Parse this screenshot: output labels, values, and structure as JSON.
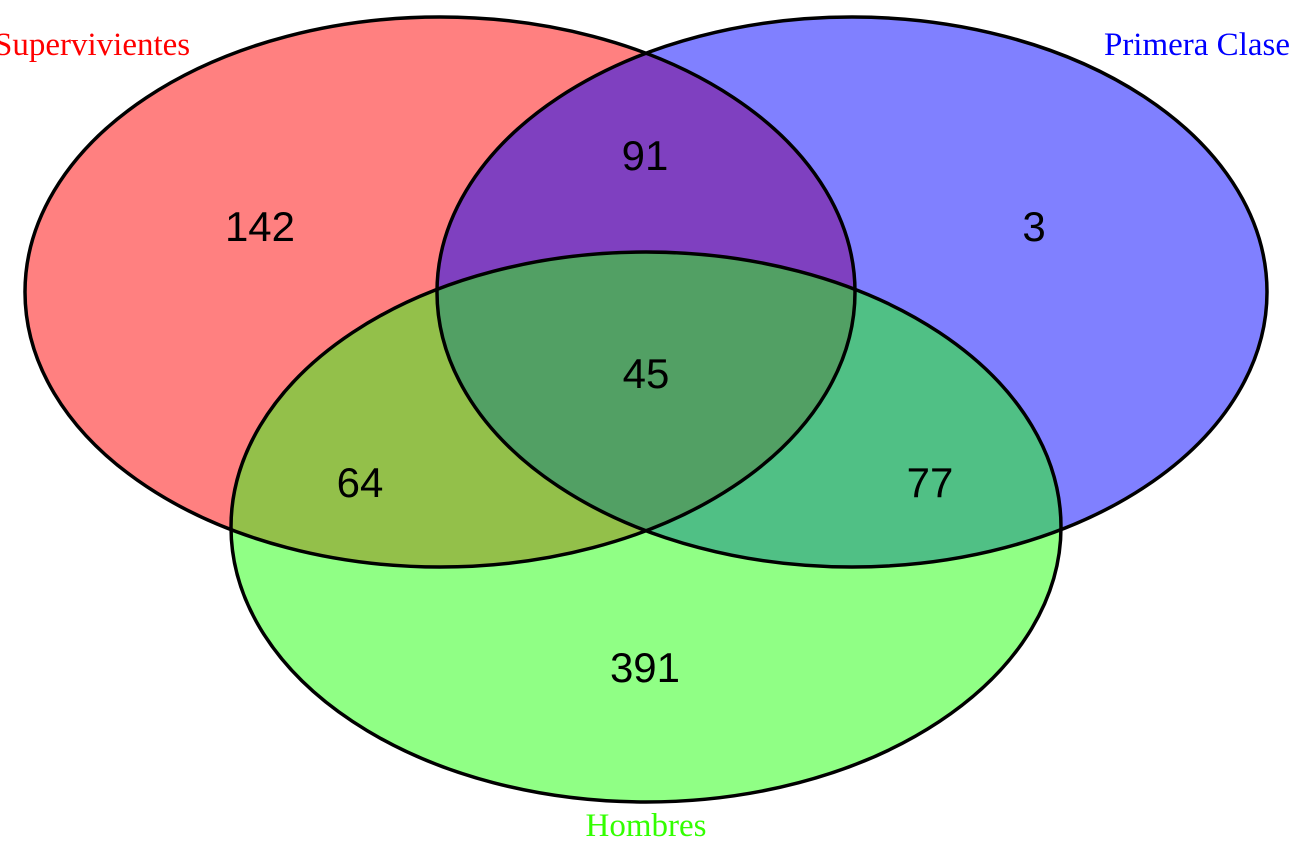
{
  "colors": {
    "background": "#ffffff",
    "outline": "#000000",
    "supervivientes": "#ff8080",
    "primera_clase": "#8080ff",
    "hombres": "#90ff85",
    "sup_primera": "#7f40c0",
    "sup_hombres": "#93c04a",
    "primera_hombres": "#50c085",
    "all_three": "#52a064"
  },
  "sets": {
    "supervivientes": {
      "label": "Supervivientes",
      "label_color": "#ff0000"
    },
    "primera_clase": {
      "label": "Primera Clase",
      "label_color": "#0000ff"
    },
    "hombres": {
      "label": "Hombres",
      "label_color": "#33ff00"
    }
  },
  "regions": {
    "only_supervivientes": "142",
    "only_primera_clase": "3",
    "only_hombres": "391",
    "supervivientes_primera_clase": "91",
    "supervivientes_hombres": "64",
    "primera_clase_hombres": "77",
    "all_three": "45"
  }
}
